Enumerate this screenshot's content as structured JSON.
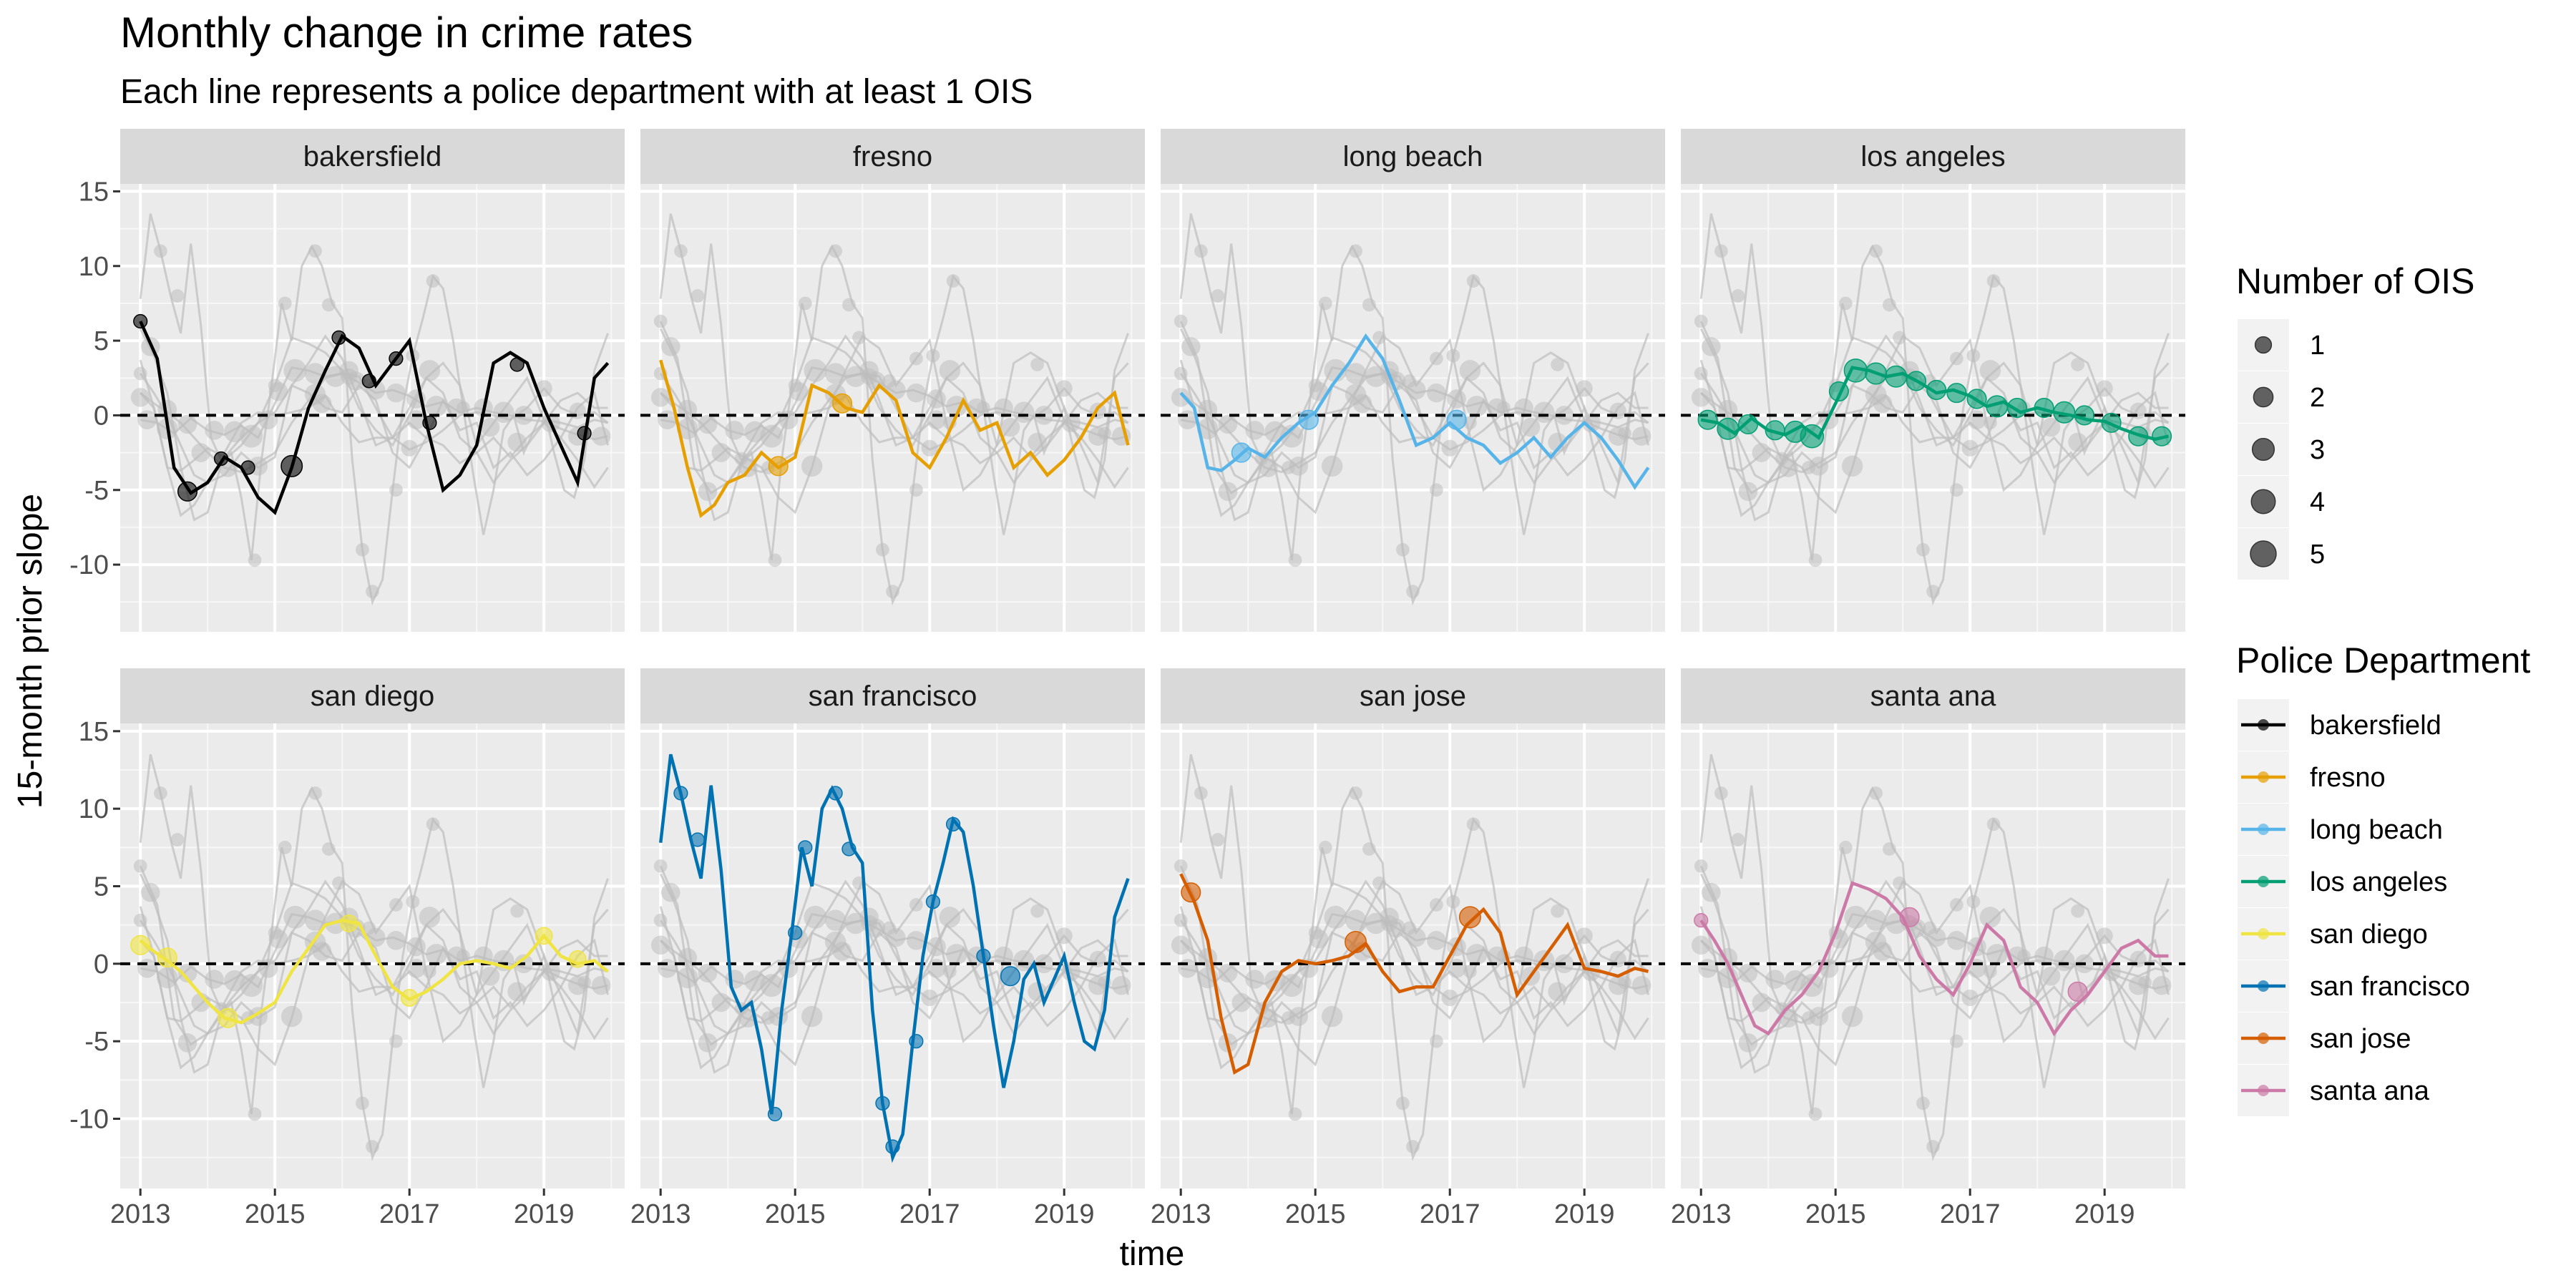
{
  "chart_data": {
    "type": "line",
    "title": "Monthly change in crime rates",
    "subtitle": "Each line represents a police department with at least 1 OIS",
    "xlabel": "time",
    "ylabel": "15-month prior slope",
    "xlim": [
      2012.7,
      2020.2
    ],
    "ylim": [
      -14.5,
      15.5
    ],
    "x_ticks": [
      2013,
      2015,
      2017,
      2019
    ],
    "x_tick_labels": [
      "2013",
      "2015",
      "2017",
      "2019"
    ],
    "y_ticks": [
      -10,
      -5,
      0,
      5,
      10,
      15
    ],
    "y_tick_labels": [
      "-10",
      "-5",
      "0",
      "5",
      "10",
      "15"
    ],
    "reference_line": 0,
    "grid": true,
    "facets": [
      "bakersfield",
      "fresno",
      "long beach",
      "los angeles",
      "san diego",
      "san francisco",
      "san jose",
      "santa ana"
    ],
    "size_legend": {
      "title": "Number of OIS",
      "values": [
        1,
        2,
        3,
        4,
        5
      ],
      "labels": [
        "1",
        "2",
        "3",
        "4",
        "5"
      ]
    },
    "color_legend": {
      "title": "Police Department",
      "labels": [
        "bakersfield",
        "fresno",
        "long beach",
        "los angeles",
        "san diego",
        "san francisco",
        "san jose",
        "santa ana"
      ]
    },
    "series": [
      {
        "name": "bakersfield",
        "color": "#000000",
        "x": [
          2013.0,
          2013.25,
          2013.5,
          2013.75,
          2014.0,
          2014.25,
          2014.5,
          2014.75,
          2015.0,
          2015.25,
          2015.5,
          2015.75,
          2016.0,
          2016.25,
          2016.5,
          2016.75,
          2017.0,
          2017.25,
          2017.5,
          2017.75,
          2018.0,
          2018.25,
          2018.5,
          2018.75,
          2019.0,
          2019.25,
          2019.5,
          2019.75,
          2019.95
        ],
        "y": [
          6.3,
          3.8,
          -3.5,
          -5.2,
          -4.5,
          -2.8,
          -3.5,
          -5.5,
          -6.5,
          -3.5,
          0.5,
          3.0,
          5.3,
          4.5,
          2.0,
          3.5,
          5.0,
          -0.5,
          -5.0,
          -4.0,
          -2.0,
          3.5,
          4.2,
          3.5,
          0.5,
          -2.0,
          -4.5,
          2.5,
          3.5
        ],
        "points": [
          {
            "x": 2013.0,
            "y": 6.3,
            "n": 1
          },
          {
            "x": 2013.7,
            "y": -5.1,
            "n": 3
          },
          {
            "x": 2014.2,
            "y": -2.9,
            "n": 1
          },
          {
            "x": 2014.6,
            "y": -3.5,
            "n": 1
          },
          {
            "x": 2015.25,
            "y": -3.4,
            "n": 4
          },
          {
            "x": 2015.95,
            "y": 5.2,
            "n": 1
          },
          {
            "x": 2016.4,
            "y": 2.3,
            "n": 1
          },
          {
            "x": 2016.8,
            "y": 3.8,
            "n": 1
          },
          {
            "x": 2017.3,
            "y": -0.5,
            "n": 1
          },
          {
            "x": 2018.6,
            "y": 3.4,
            "n": 1
          },
          {
            "x": 2019.6,
            "y": -1.2,
            "n": 1
          }
        ]
      },
      {
        "name": "fresno",
        "color": "#E69F00",
        "x": [
          2013.0,
          2013.2,
          2013.4,
          2013.6,
          2013.8,
          2014.0,
          2014.25,
          2014.5,
          2014.75,
          2015.0,
          2015.25,
          2015.5,
          2015.75,
          2016.0,
          2016.25,
          2016.5,
          2016.75,
          2017.0,
          2017.25,
          2017.5,
          2017.75,
          2018.0,
          2018.25,
          2018.5,
          2018.75,
          2019.0,
          2019.25,
          2019.5,
          2019.75,
          2019.95
        ],
        "y": [
          3.7,
          0.5,
          -3.5,
          -6.7,
          -6.0,
          -4.5,
          -4.0,
          -2.5,
          -3.5,
          -2.8,
          2.0,
          1.5,
          0.5,
          0.2,
          2.0,
          1.0,
          -2.5,
          -3.5,
          -1.5,
          1.0,
          -1.0,
          -0.5,
          -3.5,
          -2.5,
          -4.0,
          -3.0,
          -1.5,
          0.5,
          1.5,
          -2.0
        ],
        "points": [
          {
            "x": 2014.75,
            "y": -3.4,
            "n": 3
          },
          {
            "x": 2015.7,
            "y": 0.8,
            "n": 3
          }
        ]
      },
      {
        "name": "long beach",
        "color": "#56B4E9",
        "x": [
          2013.0,
          2013.2,
          2013.4,
          2013.6,
          2013.8,
          2014.0,
          2014.25,
          2014.5,
          2014.75,
          2015.0,
          2015.25,
          2015.5,
          2015.75,
          2016.0,
          2016.25,
          2016.5,
          2016.75,
          2017.0,
          2017.25,
          2017.5,
          2017.75,
          2018.0,
          2018.25,
          2018.5,
          2018.75,
          2019.0,
          2019.25,
          2019.5,
          2019.75,
          2019.95
        ],
        "y": [
          1.5,
          0.5,
          -3.5,
          -3.7,
          -3.0,
          -2.2,
          -2.8,
          -1.5,
          -0.5,
          0.2,
          2.0,
          3.5,
          5.3,
          3.8,
          1.0,
          -2.0,
          -1.5,
          -0.5,
          -1.5,
          -2.0,
          -3.2,
          -2.5,
          -1.5,
          -2.8,
          -1.5,
          -0.5,
          -1.5,
          -3.0,
          -4.8,
          -3.5
        ],
        "points": [
          {
            "x": 2013.9,
            "y": -2.5,
            "n": 3
          },
          {
            "x": 2014.9,
            "y": -0.3,
            "n": 3
          },
          {
            "x": 2017.1,
            "y": -0.3,
            "n": 3
          }
        ]
      },
      {
        "name": "los angeles",
        "color": "#009E73",
        "x": [
          2013.0,
          2013.25,
          2013.5,
          2013.75,
          2014.0,
          2014.25,
          2014.5,
          2014.75,
          2015.0,
          2015.25,
          2015.5,
          2015.75,
          2016.0,
          2016.25,
          2016.5,
          2016.75,
          2017.0,
          2017.25,
          2017.5,
          2017.75,
          2018.0,
          2018.25,
          2018.5,
          2018.75,
          2019.0,
          2019.25,
          2019.5,
          2019.75,
          2019.95
        ],
        "y": [
          -0.3,
          -0.5,
          -1.2,
          -0.2,
          -1.0,
          -1.3,
          -0.7,
          -1.5,
          0.8,
          3.2,
          3.0,
          2.6,
          2.8,
          2.2,
          1.5,
          1.7,
          1.3,
          0.6,
          0.9,
          0.2,
          0.5,
          0.2,
          0.0,
          -0.3,
          -0.4,
          -0.9,
          -1.3,
          -1.6,
          -1.4
        ],
        "points": [
          {
            "x": 2013.1,
            "y": -0.3,
            "n": 3
          },
          {
            "x": 2013.4,
            "y": -0.9,
            "n": 4
          },
          {
            "x": 2013.7,
            "y": -0.6,
            "n": 3
          },
          {
            "x": 2014.1,
            "y": -1.0,
            "n": 3
          },
          {
            "x": 2014.4,
            "y": -1.1,
            "n": 4
          },
          {
            "x": 2014.65,
            "y": -1.4,
            "n": 5
          },
          {
            "x": 2015.05,
            "y": 1.6,
            "n": 3
          },
          {
            "x": 2015.3,
            "y": 3.0,
            "n": 5
          },
          {
            "x": 2015.6,
            "y": 2.8,
            "n": 4
          },
          {
            "x": 2015.9,
            "y": 2.6,
            "n": 4
          },
          {
            "x": 2016.2,
            "y": 2.3,
            "n": 3
          },
          {
            "x": 2016.5,
            "y": 1.7,
            "n": 3
          },
          {
            "x": 2016.8,
            "y": 1.5,
            "n": 3
          },
          {
            "x": 2017.1,
            "y": 1.1,
            "n": 3
          },
          {
            "x": 2017.4,
            "y": 0.6,
            "n": 4
          },
          {
            "x": 2017.7,
            "y": 0.5,
            "n": 3
          },
          {
            "x": 2018.1,
            "y": 0.5,
            "n": 3
          },
          {
            "x": 2018.4,
            "y": 0.2,
            "n": 4
          },
          {
            "x": 2018.7,
            "y": 0.0,
            "n": 3
          },
          {
            "x": 2019.1,
            "y": -0.5,
            "n": 3
          },
          {
            "x": 2019.5,
            "y": -1.4,
            "n": 3
          },
          {
            "x": 2019.85,
            "y": -1.4,
            "n": 3
          }
        ]
      },
      {
        "name": "san diego",
        "color": "#F0E442",
        "x": [
          2013.0,
          2013.2,
          2013.4,
          2013.6,
          2013.8,
          2014.0,
          2014.25,
          2014.5,
          2014.75,
          2015.0,
          2015.25,
          2015.5,
          2015.75,
          2016.0,
          2016.25,
          2016.5,
          2016.75,
          2017.0,
          2017.25,
          2017.5,
          2017.75,
          2018.0,
          2018.25,
          2018.5,
          2018.75,
          2019.0,
          2019.25,
          2019.5,
          2019.75,
          2019.95
        ],
        "y": [
          1.5,
          0.8,
          0.2,
          -0.5,
          -1.5,
          -2.5,
          -3.5,
          -3.8,
          -3.2,
          -2.5,
          -0.5,
          1.0,
          2.5,
          2.8,
          2.6,
          0.5,
          -1.5,
          -2.3,
          -1.8,
          -1.0,
          0.0,
          0.2,
          0.0,
          -0.3,
          0.5,
          1.8,
          0.5,
          0.0,
          0.2,
          -0.5
        ],
        "points": [
          {
            "x": 2013.0,
            "y": 1.2,
            "n": 3
          },
          {
            "x": 2013.4,
            "y": 0.4,
            "n": 3
          },
          {
            "x": 2014.3,
            "y": -3.5,
            "n": 3
          },
          {
            "x": 2016.1,
            "y": 2.6,
            "n": 2
          },
          {
            "x": 2017.0,
            "y": -2.2,
            "n": 2
          },
          {
            "x": 2019.0,
            "y": 1.8,
            "n": 2
          },
          {
            "x": 2019.5,
            "y": 0.3,
            "n": 2
          }
        ]
      },
      {
        "name": "san francisco",
        "color": "#0072B2",
        "x": [
          2013.0,
          2013.15,
          2013.3,
          2013.45,
          2013.6,
          2013.75,
          2013.9,
          2014.05,
          2014.2,
          2014.35,
          2014.5,
          2014.65,
          2014.8,
          2014.95,
          2015.1,
          2015.25,
          2015.4,
          2015.55,
          2015.7,
          2015.85,
          2016.0,
          2016.15,
          2016.3,
          2016.45,
          2016.6,
          2016.75,
          2016.9,
          2017.05,
          2017.2,
          2017.35,
          2017.5,
          2017.65,
          2017.8,
          2017.95,
          2018.1,
          2018.25,
          2018.4,
          2018.55,
          2018.7,
          2018.85,
          2019.0,
          2019.15,
          2019.3,
          2019.45,
          2019.6,
          2019.75,
          2019.95
        ],
        "y": [
          7.8,
          13.5,
          11.0,
          8.0,
          5.5,
          11.5,
          6.0,
          -1.5,
          -3.0,
          -2.5,
          -5.5,
          -9.7,
          -3.0,
          2.0,
          7.5,
          5.0,
          10.0,
          11.3,
          10.0,
          7.5,
          6.5,
          -3.0,
          -9.0,
          -12.5,
          -11.0,
          -5.0,
          0.5,
          4.0,
          6.5,
          9.3,
          8.5,
          5.0,
          0.5,
          -4.0,
          -8.0,
          -5.0,
          -1.0,
          0.0,
          -2.5,
          -1.0,
          0.5,
          -2.5,
          -5.0,
          -5.5,
          -3.0,
          3.0,
          5.5
        ],
        "points": [
          {
            "x": 2013.3,
            "y": 11.0,
            "n": 1
          },
          {
            "x": 2013.55,
            "y": 8.0,
            "n": 1
          },
          {
            "x": 2014.7,
            "y": -9.7,
            "n": 1
          },
          {
            "x": 2015.0,
            "y": 2.0,
            "n": 1
          },
          {
            "x": 2015.15,
            "y": 7.5,
            "n": 1
          },
          {
            "x": 2015.6,
            "y": 11.0,
            "n": 1
          },
          {
            "x": 2015.8,
            "y": 7.4,
            "n": 1
          },
          {
            "x": 2016.3,
            "y": -9.0,
            "n": 1
          },
          {
            "x": 2016.45,
            "y": -11.8,
            "n": 1
          },
          {
            "x": 2016.8,
            "y": -5.0,
            "n": 1
          },
          {
            "x": 2017.05,
            "y": 4.0,
            "n": 1
          },
          {
            "x": 2017.35,
            "y": 9.0,
            "n": 1
          },
          {
            "x": 2017.8,
            "y": 0.5,
            "n": 1
          },
          {
            "x": 2018.2,
            "y": -0.8,
            "n": 3
          }
        ]
      },
      {
        "name": "san jose",
        "color": "#D55E00",
        "x": [
          2013.0,
          2013.2,
          2013.4,
          2013.6,
          2013.8,
          2014.0,
          2014.25,
          2014.5,
          2014.75,
          2015.0,
          2015.25,
          2015.5,
          2015.75,
          2016.0,
          2016.25,
          2016.5,
          2016.75,
          2017.0,
          2017.25,
          2017.5,
          2017.75,
          2018.0,
          2018.25,
          2018.5,
          2018.75,
          2019.0,
          2019.25,
          2019.5,
          2019.75,
          2019.95
        ],
        "y": [
          5.8,
          4.0,
          1.5,
          -3.5,
          -7.0,
          -6.5,
          -2.5,
          -0.5,
          0.2,
          0.0,
          0.2,
          0.5,
          1.3,
          -0.5,
          -1.8,
          -1.5,
          -1.5,
          0.5,
          2.5,
          3.5,
          2.0,
          -2.0,
          -0.5,
          1.0,
          2.5,
          -0.3,
          -0.5,
          -0.8,
          -0.3,
          -0.5
        ],
        "points": [
          {
            "x": 2013.15,
            "y": 4.6,
            "n": 3
          },
          {
            "x": 2015.6,
            "y": 1.4,
            "n": 4
          },
          {
            "x": 2017.3,
            "y": 3.0,
            "n": 4
          }
        ]
      },
      {
        "name": "santa ana",
        "color": "#CC79A7",
        "x": [
          2013.0,
          2013.2,
          2013.4,
          2013.6,
          2013.8,
          2014.0,
          2014.25,
          2014.5,
          2014.75,
          2015.0,
          2015.25,
          2015.5,
          2015.75,
          2016.0,
          2016.25,
          2016.5,
          2016.75,
          2017.0,
          2017.25,
          2017.5,
          2017.75,
          2018.0,
          2018.25,
          2018.5,
          2018.75,
          2019.0,
          2019.25,
          2019.5,
          2019.75,
          2019.95
        ],
        "y": [
          2.8,
          1.5,
          0.0,
          -2.0,
          -4.0,
          -4.5,
          -3.0,
          -2.0,
          -0.5,
          2.0,
          5.2,
          4.8,
          4.2,
          3.0,
          0.5,
          -1.0,
          -2.0,
          0.0,
          2.5,
          1.5,
          -1.5,
          -2.5,
          -4.5,
          -3.0,
          -2.0,
          -0.5,
          1.0,
          1.5,
          0.5,
          0.5
        ],
        "points": [
          {
            "x": 2013.0,
            "y": 2.8,
            "n": 1
          },
          {
            "x": 2016.1,
            "y": 3.0,
            "n": 3
          },
          {
            "x": 2018.6,
            "y": -1.8,
            "n": 3
          }
        ]
      }
    ]
  }
}
